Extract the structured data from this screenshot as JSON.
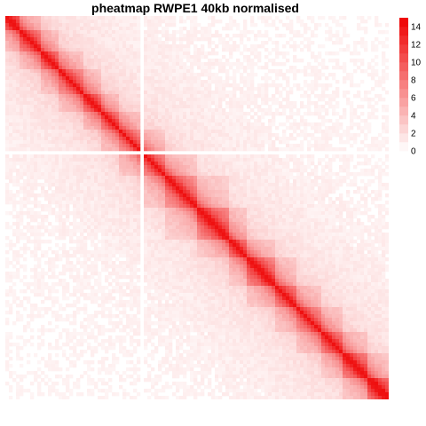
{
  "chart_data": {
    "type": "heatmap",
    "title": "pheatmap RWPE1 40kb normalised",
    "xlabel": "",
    "ylabel": "",
    "color_low": "#ffffff",
    "color_high": "#ee0000",
    "value_range": [
      0,
      15
    ],
    "legend": {
      "ticks": [
        0,
        2,
        4,
        6,
        8,
        10,
        12,
        14
      ],
      "placement": "right"
    },
    "domains": [
      {
        "start": 0.0,
        "end": 0.04,
        "level": 7
      },
      {
        "start": 0.04,
        "end": 0.09,
        "level": 6
      },
      {
        "start": 0.09,
        "end": 0.14,
        "level": 6
      },
      {
        "start": 0.14,
        "end": 0.2,
        "level": 5
      },
      {
        "start": 0.2,
        "end": 0.25,
        "level": 6
      },
      {
        "start": 0.25,
        "end": 0.3,
        "level": 5
      },
      {
        "start": 0.3,
        "end": 0.36,
        "level": 4
      },
      {
        "start": 0.36,
        "end": 0.42,
        "level": 5
      },
      {
        "start": 0.42,
        "end": 0.5,
        "level": 6
      },
      {
        "start": 0.5,
        "end": 0.58,
        "level": 7
      },
      {
        "start": 0.58,
        "end": 0.63,
        "level": 6
      },
      {
        "start": 0.63,
        "end": 0.7,
        "level": 7
      },
      {
        "start": 0.7,
        "end": 0.76,
        "level": 6
      },
      {
        "start": 0.76,
        "end": 0.82,
        "level": 5
      },
      {
        "start": 0.82,
        "end": 0.88,
        "level": 6
      },
      {
        "start": 0.88,
        "end": 0.94,
        "level": 7
      },
      {
        "start": 0.94,
        "end": 1.0,
        "level": 8
      }
    ],
    "gap_bin_fraction": 0.355,
    "diagonal_value": 14
  }
}
